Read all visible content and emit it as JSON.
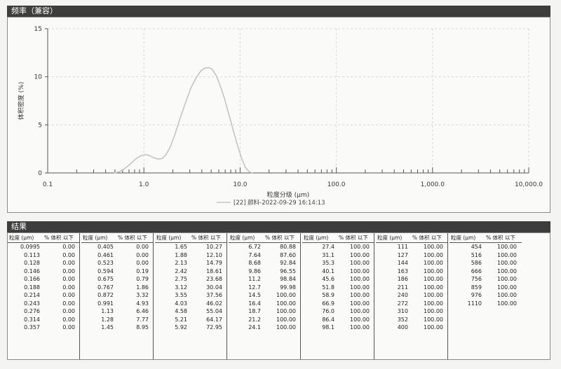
{
  "chart_panel": {
    "title": "频率（兼容）"
  },
  "chart_data": {
    "type": "line",
    "x_scale": "log",
    "xlim": [
      0.1,
      10000
    ],
    "ylim": [
      0,
      15
    ],
    "xlabel": "粒度分级 (μm)",
    "ylabel": "体积密度 (%)",
    "x_ticks": [
      0.1,
      1,
      10,
      100,
      1000,
      10000
    ],
    "x_tick_labels": [
      "0.1",
      "1.0",
      "10.0",
      "100.0",
      "1,000.0",
      "10,000.0"
    ],
    "y_ticks": [
      0,
      5,
      10,
      15
    ],
    "y_tick_labels": [
      "0",
      "5",
      "10",
      "15"
    ],
    "grid": true,
    "legend_position": "bottom-center",
    "legend_color": "#c4c4c4",
    "series": [
      {
        "name": "[22] 颜料-2022-09-29 16:14:13",
        "x": [
          0.49,
          0.55,
          0.62,
          0.7,
          0.78,
          0.86,
          0.95,
          1.05,
          1.15,
          1.27,
          1.4,
          1.55,
          1.7,
          1.88,
          2.1,
          2.4,
          2.75,
          3.1,
          3.5,
          3.9,
          4.3,
          4.7,
          5.1,
          5.6,
          6.2,
          6.9,
          7.6,
          8.4,
          9.3,
          10.3,
          11.3,
          12.5,
          13.5
        ],
        "y": [
          0.0,
          0.1,
          0.4,
          0.8,
          1.25,
          1.6,
          1.82,
          1.9,
          1.8,
          1.58,
          1.45,
          1.5,
          1.9,
          2.7,
          4.0,
          5.8,
          7.5,
          8.9,
          9.9,
          10.6,
          10.9,
          10.95,
          10.8,
          10.2,
          9.1,
          7.7,
          6.2,
          4.6,
          3.0,
          1.6,
          0.6,
          0.1,
          0.0
        ]
      }
    ]
  },
  "table_panel": {
    "title": "结果",
    "header_size": "粒度 (μm)",
    "header_pct": "% 体积 以下",
    "columns": [
      [
        [
          "0.0995",
          "0.00"
        ],
        [
          "0.113",
          "0.00"
        ],
        [
          "0.128",
          "0.00"
        ],
        [
          "0.146",
          "0.00"
        ],
        [
          "0.166",
          "0.00"
        ],
        [
          "0.188",
          "0.00"
        ],
        [
          "0.214",
          "0.00"
        ],
        [
          "0.243",
          "0.00"
        ],
        [
          "0.276",
          "0.00"
        ],
        [
          "0.314",
          "0.00"
        ],
        [
          "0.357",
          "0.00"
        ]
      ],
      [
        [
          "0.405",
          "0.00"
        ],
        [
          "0.461",
          "0.00"
        ],
        [
          "0.523",
          "0.00"
        ],
        [
          "0.594",
          "0.19"
        ],
        [
          "0.675",
          "0.79"
        ],
        [
          "0.767",
          "1.86"
        ],
        [
          "0.872",
          "3.32"
        ],
        [
          "0.991",
          "4.93"
        ],
        [
          "1.13",
          "6.46"
        ],
        [
          "1.28",
          "7.77"
        ],
        [
          "1.45",
          "8.95"
        ]
      ],
      [
        [
          "1.65",
          "10.27"
        ],
        [
          "1.88",
          "12.10"
        ],
        [
          "2.13",
          "14.79"
        ],
        [
          "2.42",
          "18.61"
        ],
        [
          "2.75",
          "23.68"
        ],
        [
          "3.12",
          "30.04"
        ],
        [
          "3.55",
          "37.56"
        ],
        [
          "4.03",
          "46.02"
        ],
        [
          "4.58",
          "55.04"
        ],
        [
          "5.21",
          "64.17"
        ],
        [
          "5.92",
          "72.95"
        ]
      ],
      [
        [
          "6.72",
          "80.88"
        ],
        [
          "7.64",
          "87.60"
        ],
        [
          "8.68",
          "92.84"
        ],
        [
          "9.86",
          "96.55"
        ],
        [
          "11.2",
          "98.84"
        ],
        [
          "12.7",
          "99.98"
        ],
        [
          "14.5",
          "100.00"
        ],
        [
          "16.4",
          "100.00"
        ],
        [
          "18.7",
          "100.00"
        ],
        [
          "21.2",
          "100.00"
        ],
        [
          "24.1",
          "100.00"
        ]
      ],
      [
        [
          "27.4",
          "100.00"
        ],
        [
          "31.1",
          "100.00"
        ],
        [
          "35.3",
          "100.00"
        ],
        [
          "40.1",
          "100.00"
        ],
        [
          "45.6",
          "100.00"
        ],
        [
          "51.8",
          "100.00"
        ],
        [
          "58.9",
          "100.00"
        ],
        [
          "66.9",
          "100.00"
        ],
        [
          "76.0",
          "100.00"
        ],
        [
          "86.4",
          "100.00"
        ],
        [
          "98.1",
          "100.00"
        ]
      ],
      [
        [
          "111",
          "100.00"
        ],
        [
          "127",
          "100.00"
        ],
        [
          "144",
          "100.00"
        ],
        [
          "163",
          "100.00"
        ],
        [
          "186",
          "100.00"
        ],
        [
          "211",
          "100.00"
        ],
        [
          "240",
          "100.00"
        ],
        [
          "272",
          "100.00"
        ],
        [
          "310",
          "100.00"
        ],
        [
          "352",
          "100.00"
        ],
        [
          "400",
          "100.00"
        ]
      ],
      [
        [
          "454",
          "100.00"
        ],
        [
          "516",
          "100.00"
        ],
        [
          "586",
          "100.00"
        ],
        [
          "666",
          "100.00"
        ],
        [
          "756",
          "100.00"
        ],
        [
          "859",
          "100.00"
        ],
        [
          "976",
          "100.00"
        ],
        [
          "1110",
          "100.00"
        ]
      ]
    ]
  }
}
